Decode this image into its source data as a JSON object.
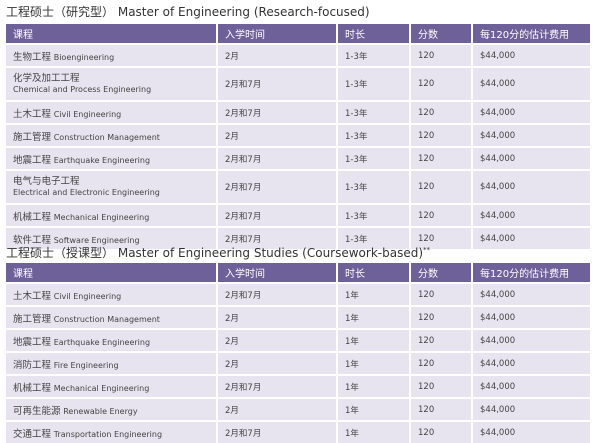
{
  "research": {
    "title_zh": "工程硕士（研究型）",
    "title_en": "Master of Engineering (Research-focused)",
    "headers": [
      "课程",
      "入学时间",
      "时长",
      "分数",
      "每120分的估计费用"
    ],
    "rows": [
      {
        "zh": "生物工程",
        "en": "Bioengineering",
        "intake": "2月",
        "duration": "1-3年",
        "points": "120",
        "fee": "$44,000"
      },
      {
        "zh": "化学及加工工程",
        "en": "Chemical and Process Engineering",
        "intake": "2月和7月",
        "duration": "1-3年",
        "points": "120",
        "fee": "$44,000"
      },
      {
        "zh": "土木工程",
        "en": "Civil Engineering",
        "intake": "2月和7月",
        "duration": "1-3年",
        "points": "120",
        "fee": "$44,000"
      },
      {
        "zh": "施工管理",
        "en": "Construction Management",
        "intake": "2月",
        "duration": "1-3年",
        "points": "120",
        "fee": "$44,000"
      },
      {
        "zh": "地震工程",
        "en": "Earthquake Engineering",
        "intake": "2月和7月",
        "duration": "1-3年",
        "points": "120",
        "fee": "$44,000"
      },
      {
        "zh": "电气与电子工程",
        "en": "Electrical and Electronic Engineering",
        "intake": "2月和7月",
        "duration": "1-3年",
        "points": "120",
        "fee": "$44,000"
      },
      {
        "zh": "机械工程",
        "en": "Mechanical Engineering",
        "intake": "2月和7月",
        "duration": "1-3年",
        "points": "120",
        "fee": "$44,000"
      },
      {
        "zh": "软件工程",
        "en": "Software Engineering",
        "intake": "2月和7月",
        "duration": "1-3年",
        "points": "120",
        "fee": "$44,000"
      }
    ]
  },
  "coursework": {
    "title_zh": "工程硕士（授课型）",
    "title_en": "Master of Engineering Studies (Coursework-based)",
    "title_mark": "**",
    "headers": [
      "课程",
      "入学时间",
      "时长",
      "分数",
      "每120分的估计费用"
    ],
    "rows": [
      {
        "zh": "土木工程",
        "en": "Civil Engineering",
        "intake": "2月和7月",
        "duration": "1年",
        "points": "120",
        "fee": "$44,000"
      },
      {
        "zh": "施工管理",
        "en": "Construction Management",
        "intake": "2月",
        "duration": "1年",
        "points": "120",
        "fee": "$44,000"
      },
      {
        "zh": "地震工程",
        "en": "Earthquake Engineering",
        "intake": "2月",
        "duration": "1年",
        "points": "120",
        "fee": "$44,000"
      },
      {
        "zh": "消防工程",
        "en": "Fire Engineering",
        "intake": "2月",
        "duration": "1年",
        "points": "120",
        "fee": "$44,000"
      },
      {
        "zh": "机械工程",
        "en": "Mechanical Engineering",
        "intake": "2月和7月",
        "duration": "1年",
        "points": "120",
        "fee": "$44,000"
      },
      {
        "zh": "可再生能源",
        "en": "Renewable Energy",
        "intake": "2月",
        "duration": "1年",
        "points": "120",
        "fee": "$44,000"
      },
      {
        "zh": "交通工程",
        "en": "Transportation Engineering",
        "intake": "2月和7月",
        "duration": "1年",
        "points": "120",
        "fee": "$44,000"
      }
    ]
  },
  "colors": {
    "header_bg": "#6e6099",
    "row_bg": "#e7e4ef"
  }
}
